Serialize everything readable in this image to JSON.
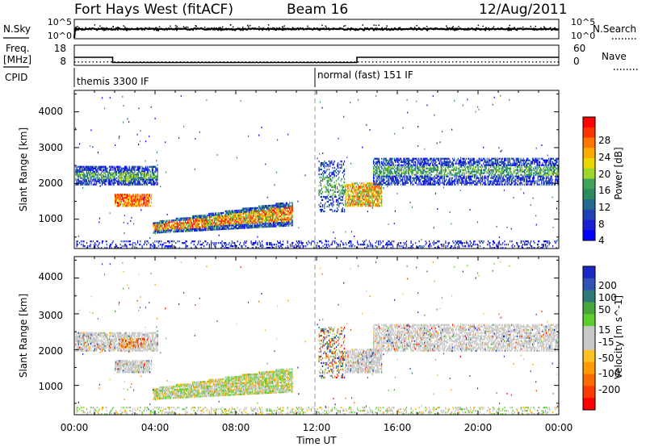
{
  "header": {
    "station": "Fort Hays West (fitACF)",
    "beam": "Beam 16",
    "date": "12/Aug/2011"
  },
  "sidebar_labels": {
    "nsky": "N.Sky",
    "freq": "Freq.",
    "mhz": "[MHz]",
    "cpid": "CPID",
    "nsearch": "N.Search",
    "nave": "Nave"
  },
  "noise_panel": {
    "yticks": [
      "10^5",
      "10^0"
    ],
    "yticks_right": [
      "10^5",
      "10^0"
    ]
  },
  "freq_panel": {
    "yticks": [
      "18",
      "8"
    ],
    "yticks_right": [
      "60",
      "0"
    ],
    "freq_segments": [
      {
        "start": 0.0,
        "end": 1.9,
        "value": 12.0
      },
      {
        "start": 1.9,
        "end": 14.0,
        "value": 9.4
      },
      {
        "start": 14.0,
        "end": 24.0,
        "value": 12.0
      }
    ],
    "nave_level": 10
  },
  "cpid": {
    "segments": [
      {
        "start": 0.0,
        "label": "themis 3300 IF"
      },
      {
        "start": 12.0,
        "label": "normal (fast) 151 IF"
      }
    ]
  },
  "chart_data": {
    "type": "heatmap",
    "x_range_hours": [
      0,
      24
    ],
    "xticks": [
      "00:00",
      "04:00",
      "08:00",
      "12:00",
      "16:00",
      "20:00",
      "00:00"
    ],
    "xlabel": "Time UT",
    "panels": [
      {
        "name": "power",
        "ylabel": "Slant Range [km]",
        "ylim": [
          180,
          4600
        ],
        "yticks": [
          "1000",
          "2000",
          "3000",
          "4000"
        ],
        "colorbar": {
          "label": "Power [dB]",
          "ticks": [
            "28",
            "24",
            "20",
            "16",
            "12",
            "8",
            "4"
          ],
          "colors": [
            "#ff0000",
            "#ff3300",
            "#ff7700",
            "#ffaa00",
            "#e8d800",
            "#9fd62a",
            "#3fa55b",
            "#2d8b60",
            "#236b8f",
            "#1f43b4",
            "#1a1fd6",
            "#0000ff"
          ]
        }
      },
      {
        "name": "velocity",
        "ylabel": "Slant Range [km]",
        "ylim": [
          180,
          4600
        ],
        "yticks": [
          "1000",
          "2000",
          "3000",
          "4000"
        ],
        "colorbar": {
          "label": "Velocity [m s^-1]",
          "ticks": [
            "200",
            "100",
            "50",
            "15",
            "-15",
            "-50",
            "-100",
            "-200"
          ],
          "colors": [
            "#1a28c8",
            "#2f52b4",
            "#2f7a78",
            "#46a838",
            "#5ccf2e",
            "#c8c8c8",
            "#c8c8c8",
            "#ffc020",
            "#ff9a00",
            "#ff6a00",
            "#ff3a00",
            "#ff0000"
          ]
        }
      }
    ]
  }
}
